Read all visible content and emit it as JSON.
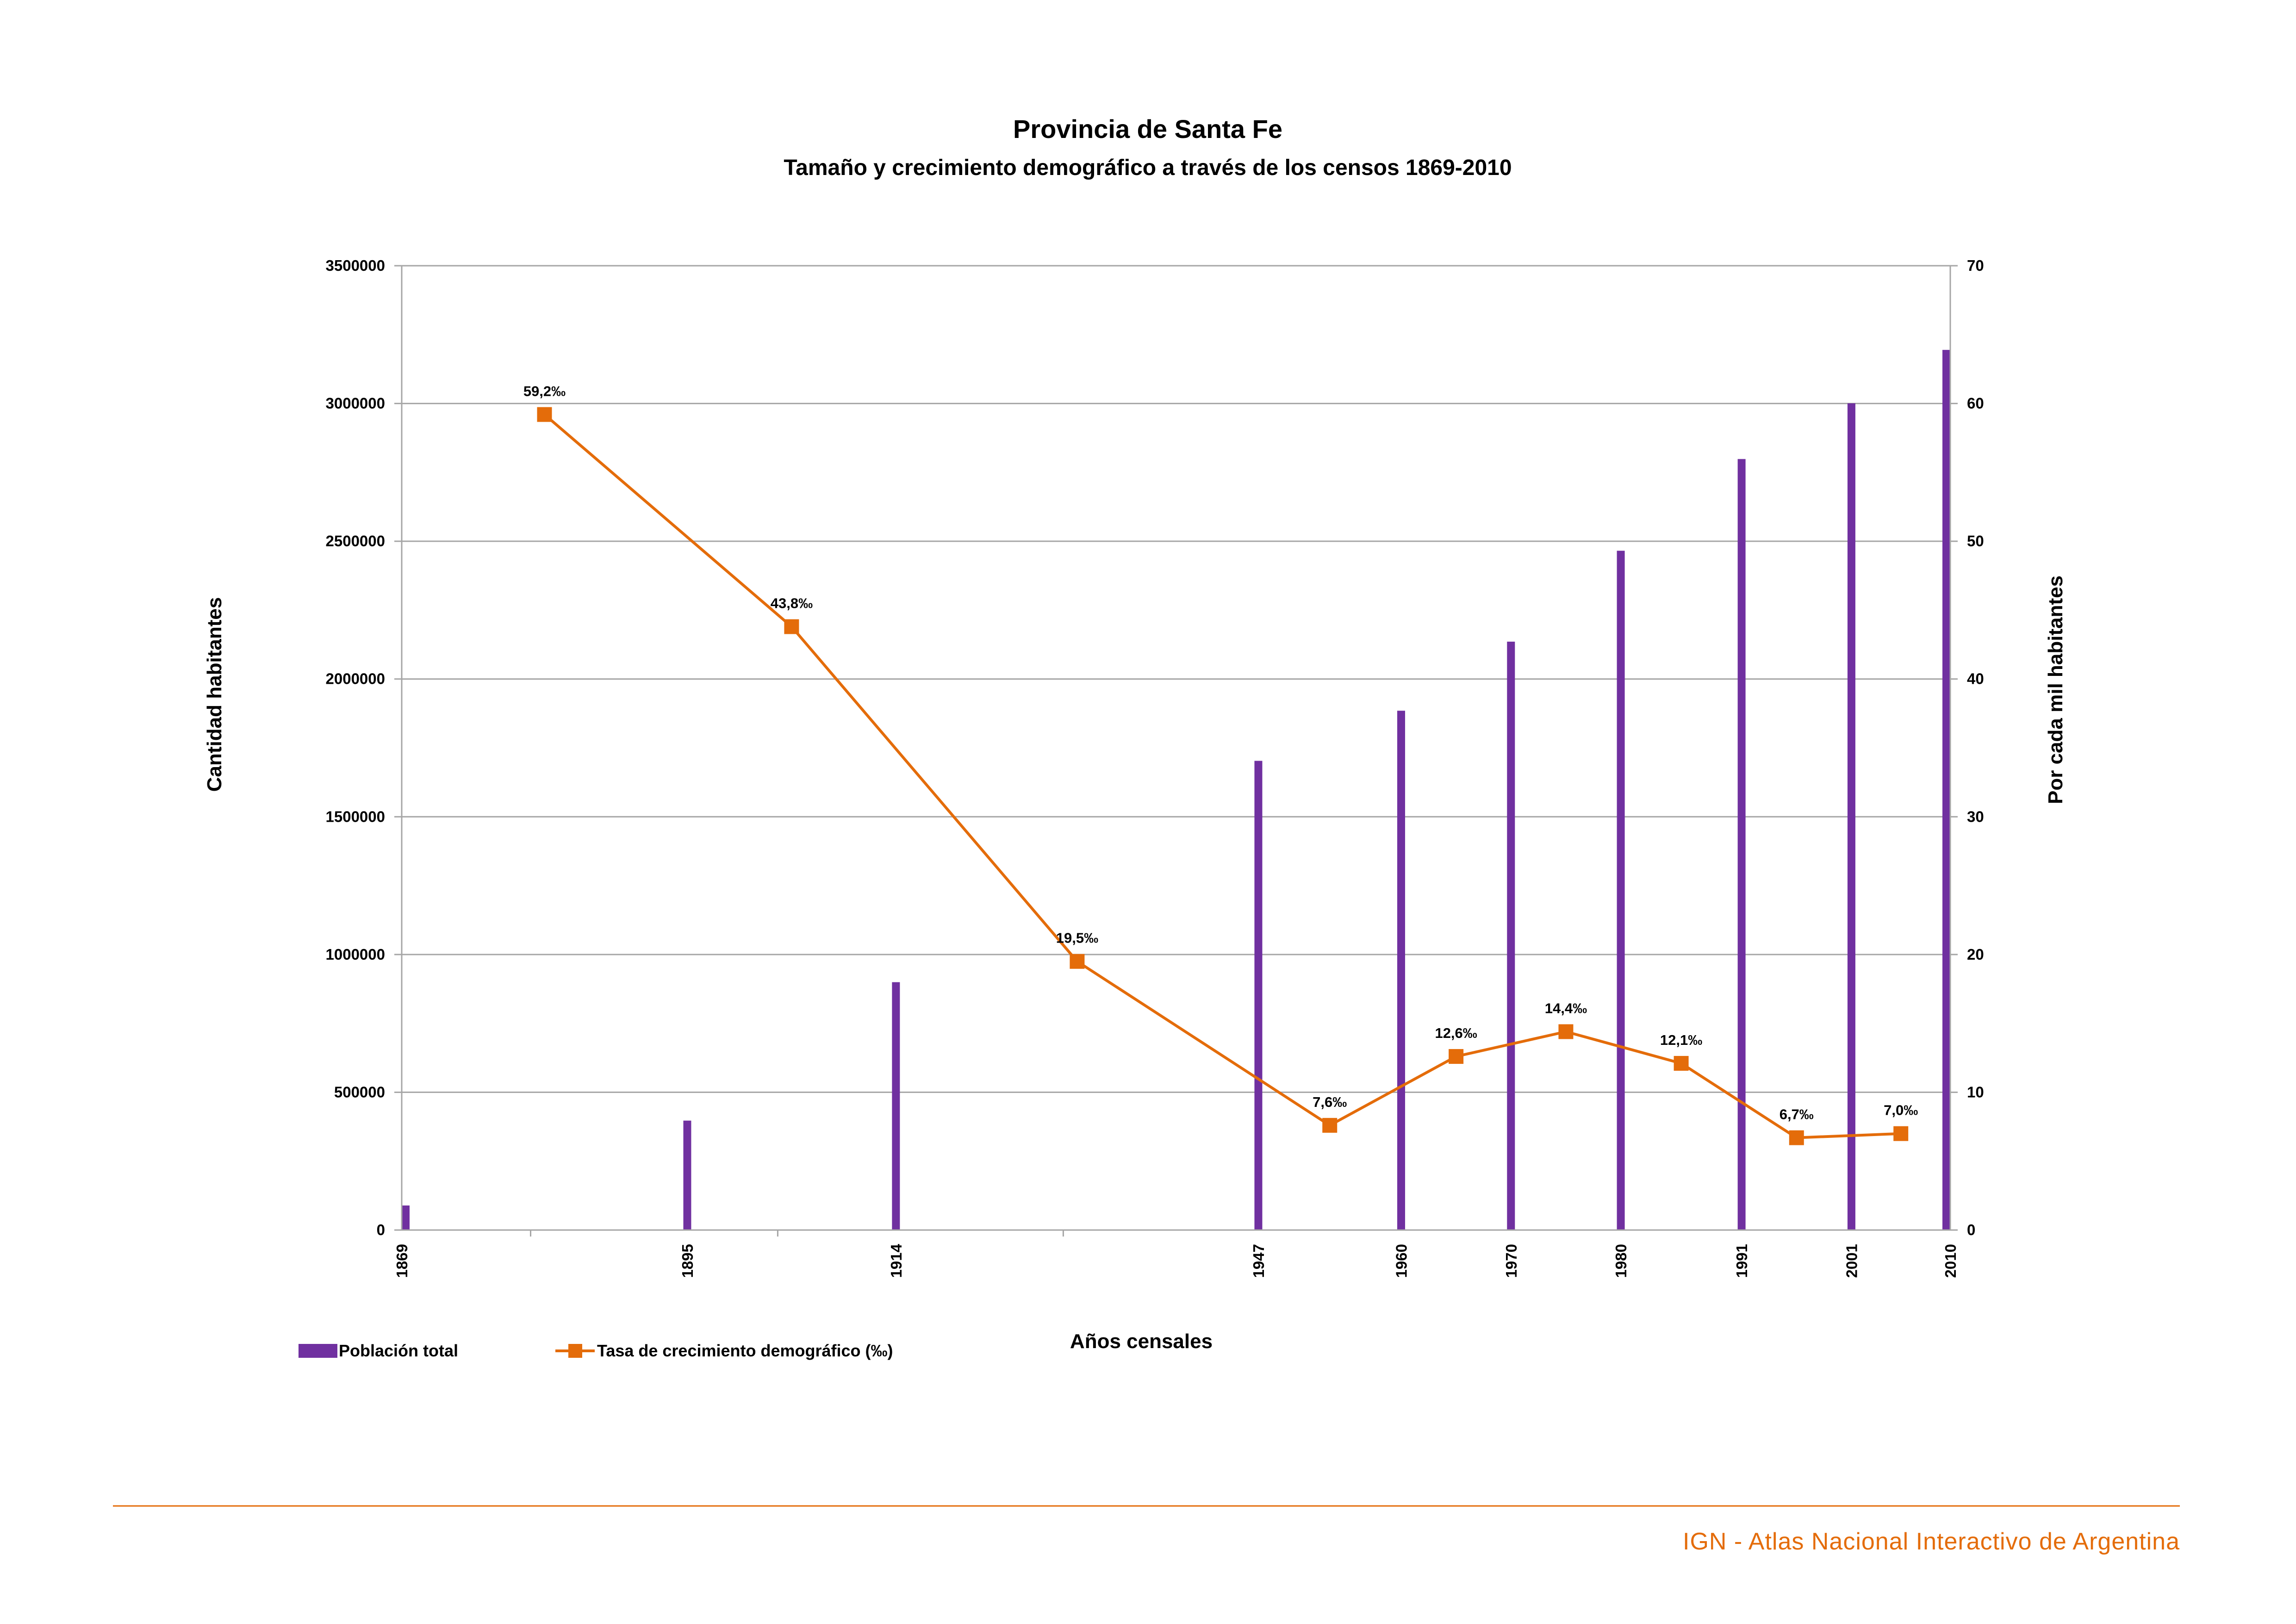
{
  "chart_data": {
    "type": "bar+line",
    "title": "Provincia de Santa Fe",
    "subtitle": "Tamaño y crecimiento demográfico a través de los censos 1869-2010",
    "xlabel": "Años censales",
    "ylabel": "Cantidad habitantes",
    "y2label": "Por cada mil habitantes",
    "ylim": [
      0,
      3500000
    ],
    "y_ticks": [
      "0",
      "500000",
      "1000000",
      "1500000",
      "2000000",
      "2500000",
      "3000000",
      "3500000"
    ],
    "y2lim": [
      0,
      70
    ],
    "y2_ticks": [
      "0",
      "10",
      "20",
      "30",
      "40",
      "50",
      "60",
      "70"
    ],
    "x_range": [
      1869,
      2010
    ],
    "categories": [
      "1869",
      "1895",
      "1914",
      "1947",
      "1960",
      "1970",
      "1980",
      "1991",
      "2001",
      "2010"
    ],
    "grid": true,
    "legend_position": "bottom-left",
    "colors": {
      "bars": "#7030a0",
      "line": "#e46c0a",
      "grid": "#a6a6a6"
    },
    "series": [
      {
        "name": "Población total",
        "type": "bar",
        "x": [
          1869,
          1895,
          1914,
          1947,
          1960,
          1970,
          1980,
          1991,
          2001,
          2010
        ],
        "values": [
          89117,
          397188,
          899640,
          1702975,
          1884918,
          2135583,
          2465546,
          2798422,
          3000701,
          3194537
        ]
      },
      {
        "name": "Tasa de crecimiento demográfico (‰)",
        "type": "line",
        "axis": "right",
        "x": [
          1882,
          1904.5,
          1930.5,
          1953.5,
          1965,
          1975,
          1985.5,
          1996,
          2005.5
        ],
        "values": [
          59.2,
          43.8,
          19.5,
          7.6,
          12.6,
          14.4,
          12.1,
          6.7,
          7.0
        ],
        "labels": [
          "59,2‰",
          "43,8‰",
          "19,5‰",
          "7,6‰",
          "12,6‰",
          "14,4‰",
          "12,1‰",
          "6,7‰",
          "7,0‰"
        ]
      }
    ]
  },
  "footer": {
    "text": "IGN - Atlas Nacional Interactivo de Argentina"
  }
}
